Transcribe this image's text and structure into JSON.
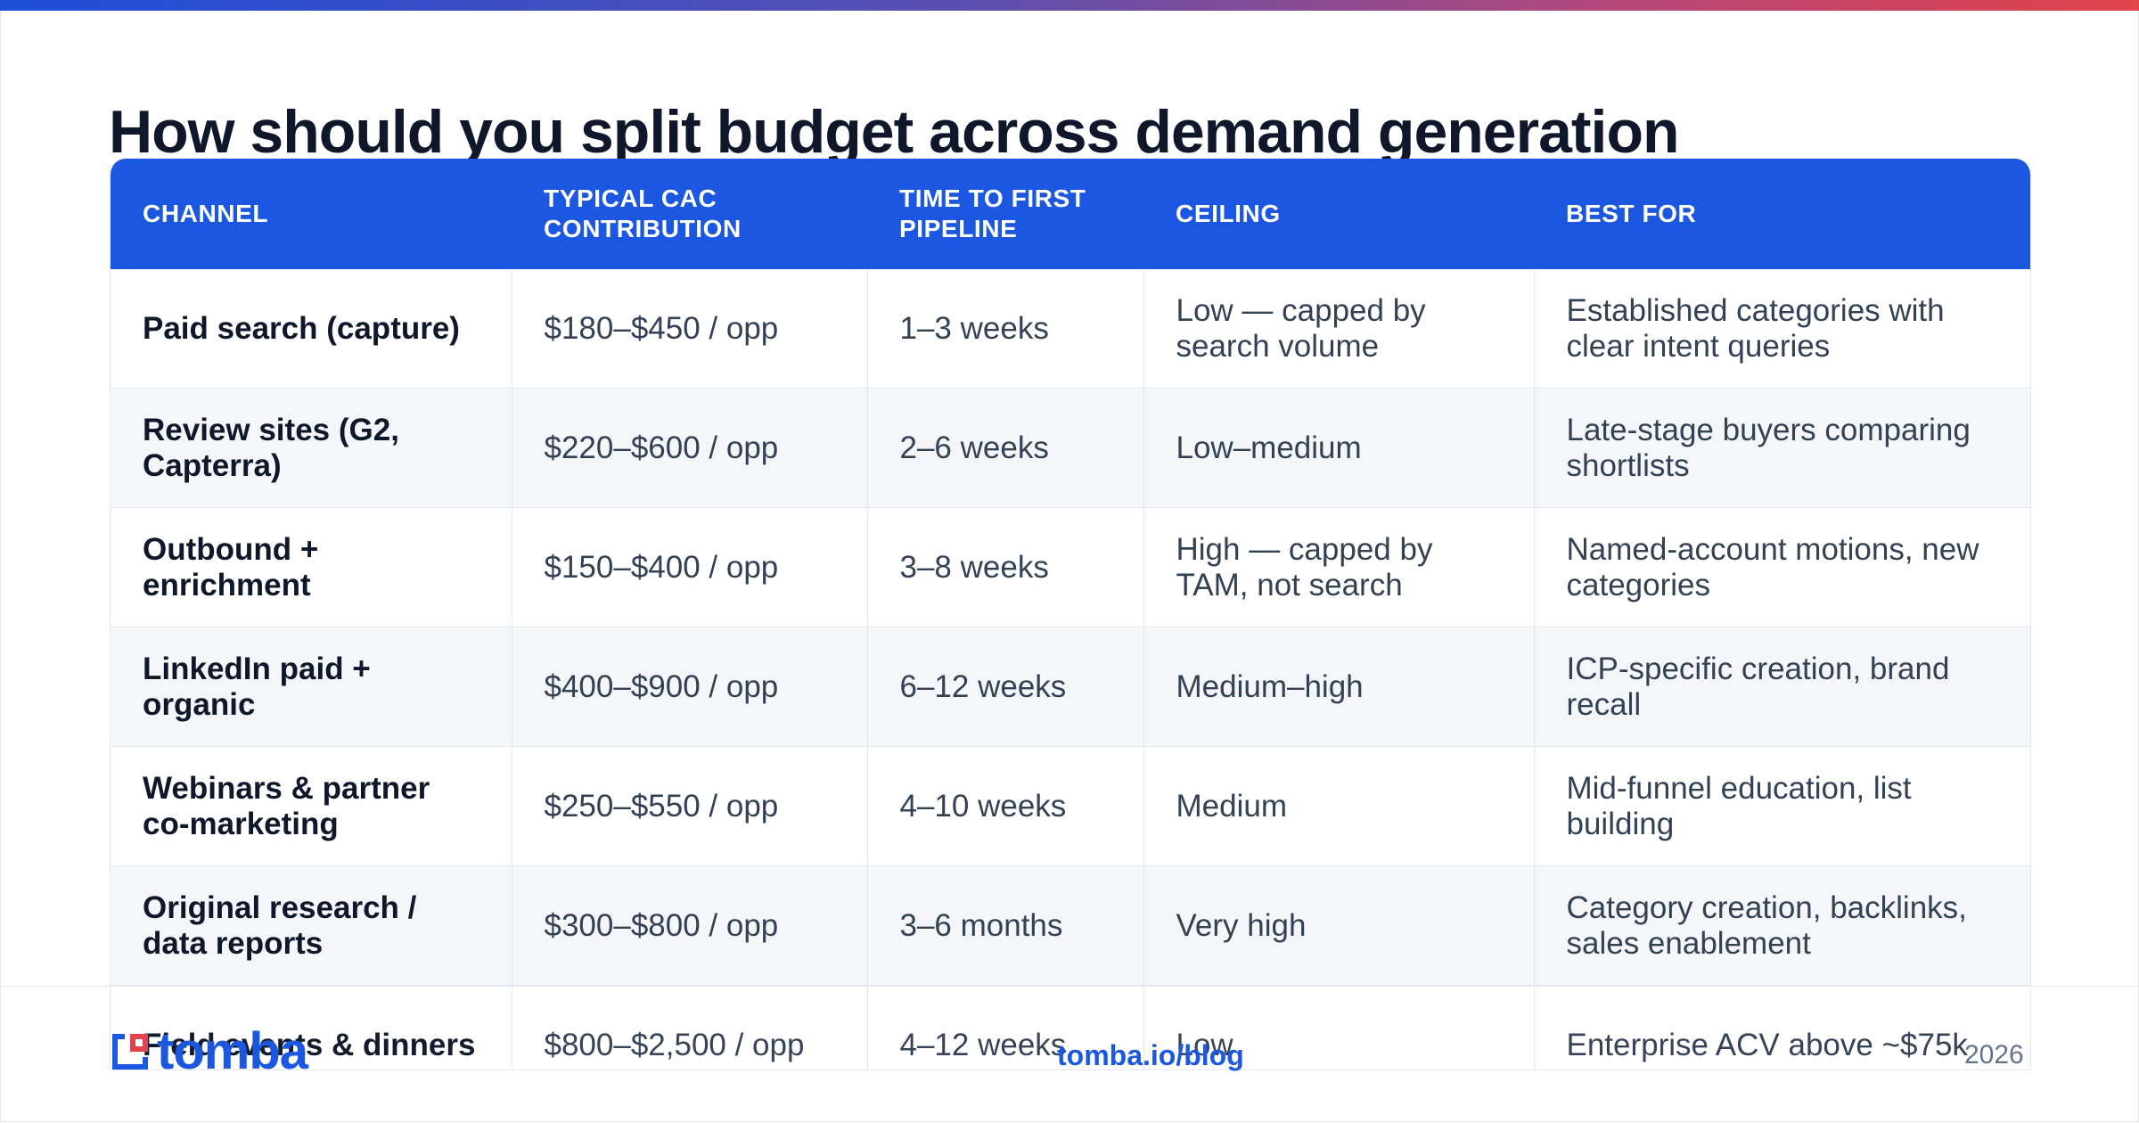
{
  "title": "How should you split budget across demand generation",
  "table": {
    "headers": [
      "CHANNEL",
      "TYPICAL CAC CONTRIBUTION",
      "TIME TO FIRST PIPELINE",
      "CEILING",
      "BEST FOR"
    ],
    "rows": [
      [
        "Paid search (capture)",
        "$180–$450 / opp",
        "1–3 weeks",
        "Low — capped by search volume",
        "Established categories with clear intent queries"
      ],
      [
        "Review sites (G2, Capterra)",
        "$220–$600 / opp",
        "2–6 weeks",
        "Low–medium",
        "Late-stage buyers comparing shortlists"
      ],
      [
        "Outbound + enrichment",
        "$150–$400 / opp",
        "3–8 weeks",
        "High — capped by TAM, not search",
        "Named-account motions, new categories"
      ],
      [
        "LinkedIn paid + organic",
        "$400–$900 / opp",
        "6–12 weeks",
        "Medium–high",
        "ICP-specific creation, brand recall"
      ],
      [
        "Webinars & partner co-marketing",
        "$250–$550 / opp",
        "4–10 weeks",
        "Medium",
        "Mid-funnel education, list building"
      ],
      [
        "Original research / data reports",
        "$300–$800 / opp",
        "3–6 months",
        "Very high",
        "Category creation, backlinks, sales enablement"
      ],
      [
        "Field events & dinners",
        "$800–$2,500 / opp",
        "4–12 weeks",
        "Low",
        "Enterprise ACV above ~$75k"
      ]
    ]
  },
  "footer": {
    "logo_text": "tomba",
    "link_text": "tomba.io/blog",
    "year": "2026"
  },
  "colors": {
    "accent": "#1b57e0",
    "logo_red": "#e2434c",
    "row_shade": "#f4f6f9"
  }
}
